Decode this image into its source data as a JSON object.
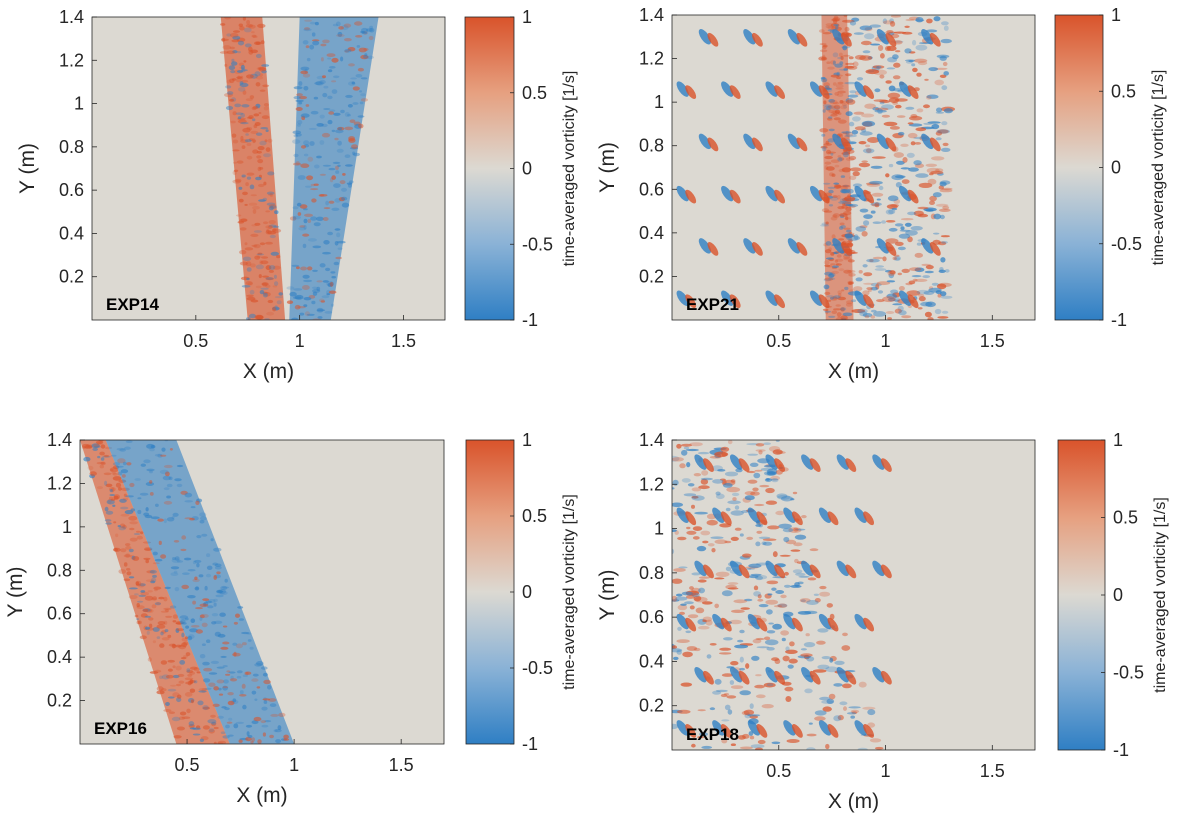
{
  "colors": {
    "positive": "#d9532b",
    "negative": "#2f7fc4",
    "neutral": "#dcd9d2",
    "background": "#ffffff",
    "axis": "#262626"
  },
  "icons": [
    "vorticity-field-image"
  ],
  "chart_data": [
    {
      "type": "heatmap",
      "panel": "EXP14",
      "annotation": "EXP14",
      "xlabel": "X (m)",
      "ylabel": "Y (m)",
      "xlim": [
        0,
        1.7
      ],
      "ylim": [
        0,
        1.4
      ],
      "x_ticks": [
        0.5,
        1,
        1.5
      ],
      "x_tick_labels": [
        "0.5",
        "1",
        "1.5"
      ],
      "y_ticks": [
        0.2,
        0.4,
        0.6,
        0.8,
        1,
        1.2,
        1.4
      ],
      "y_tick_labels": [
        "0.2",
        "0.4",
        "0.6",
        "0.8",
        "1",
        "1.2",
        "1.4"
      ],
      "colorbar": {
        "label": "time-averaged vorticity  [1/s]",
        "range": [
          -1,
          1
        ],
        "ticks": [
          1,
          0.5,
          0,
          -0.5,
          -1
        ],
        "tick_labels": [
          "1",
          "0.5",
          "0",
          "-0.5",
          "-1"
        ]
      },
      "grid": false,
      "bands": [
        {
          "sign": "positive",
          "y_bottom_x": [
            0.75,
            0.93
          ],
          "y_top_x": [
            0.62,
            0.82
          ],
          "intensity": 0.75
        },
        {
          "sign": "negative",
          "y_bottom_x": [
            0.95,
            1.15
          ],
          "y_top_x": [
            1.0,
            1.38
          ],
          "intensity": 0.7
        }
      ]
    },
    {
      "type": "heatmap",
      "panel": "EXP21",
      "annotation": "EXP21",
      "xlabel": "X (m)",
      "ylabel": "Y (m)",
      "xlim": [
        0,
        1.7
      ],
      "ylim": [
        0,
        1.4
      ],
      "x_ticks": [
        0.5,
        1,
        1.5
      ],
      "x_tick_labels": [
        "0.5",
        "1",
        "1.5"
      ],
      "y_ticks": [
        0.2,
        0.4,
        0.6,
        0.8,
        1,
        1.2,
        1.4
      ],
      "y_tick_labels": [
        "0.2",
        "0.4",
        "0.6",
        "0.8",
        "1",
        "1.2",
        "1.4"
      ],
      "colorbar": {
        "label": "time-averaged vorticity  [1/s]",
        "range": [
          -1,
          1
        ],
        "ticks": [
          1,
          0.5,
          0,
          -0.5,
          -1
        ],
        "tick_labels": [
          "1",
          "0.5",
          "0",
          "-0.5",
          "-1"
        ]
      },
      "grid": false,
      "bands": [
        {
          "sign": "positive",
          "y_bottom_x": [
            0.72,
            0.85
          ],
          "y_top_x": [
            0.7,
            0.82
          ],
          "intensity": 0.6
        },
        {
          "sign": "mixed",
          "y_bottom_x": [
            0.8,
            1.3
          ],
          "y_top_x": [
            0.8,
            1.3
          ],
          "intensity": 0.8
        }
      ],
      "vortex_pairs": {
        "x_range": [
          0.05,
          1.3
        ],
        "y_range": [
          0.1,
          1.3
        ],
        "density": "regular-array"
      }
    },
    {
      "type": "heatmap",
      "panel": "EXP16",
      "annotation": "EXP16",
      "xlabel": "X (m)",
      "ylabel": "Y (m)",
      "xlim": [
        0,
        1.7
      ],
      "ylim": [
        0,
        1.4
      ],
      "x_ticks": [
        0.5,
        1,
        1.5
      ],
      "x_tick_labels": [
        "0.5",
        "1",
        "1.5"
      ],
      "y_ticks": [
        0.2,
        0.4,
        0.6,
        0.8,
        1,
        1.2,
        1.4
      ],
      "y_tick_labels": [
        "0.2",
        "0.4",
        "0.6",
        "0.8",
        "1",
        "1.2",
        "1.4"
      ],
      "colorbar": {
        "label": "time-averaged vorticity  [1/s]",
        "range": [
          -1,
          1
        ],
        "ticks": [
          1,
          0.5,
          0,
          -0.5,
          -1
        ],
        "tick_labels": [
          "1",
          "0.5",
          "0",
          "-0.5",
          "-1"
        ]
      },
      "grid": false,
      "bands": [
        {
          "sign": "positive",
          "y_bottom_x": [
            0.45,
            0.7
          ],
          "y_top_x": [
            0.0,
            0.12
          ],
          "intensity": 0.7
        },
        {
          "sign": "negative",
          "y_bottom_x": [
            0.7,
            1.0
          ],
          "y_top_x": [
            0.12,
            0.45
          ],
          "intensity": 0.7
        }
      ]
    },
    {
      "type": "heatmap",
      "panel": "EXP18",
      "annotation": "EXP18",
      "xlabel": "X (m)",
      "ylabel": "Y (m)",
      "xlim": [
        0,
        1.7
      ],
      "ylim": [
        0,
        1.4
      ],
      "x_ticks": [
        0.5,
        1,
        1.5
      ],
      "x_tick_labels": [
        "0.5",
        "1",
        "1.5"
      ],
      "y_ticks": [
        0.2,
        0.4,
        0.6,
        0.8,
        1,
        1.2,
        1.4
      ],
      "y_tick_labels": [
        "0.2",
        "0.4",
        "0.6",
        "0.8",
        "1",
        "1.2",
        "1.4"
      ],
      "colorbar": {
        "label": "time-averaged vorticity  [1/s]",
        "range": [
          -1,
          1
        ],
        "ticks": [
          1,
          0.5,
          0,
          -0.5,
          -1
        ],
        "tick_labels": [
          "1",
          "0.5",
          "0",
          "-0.5",
          "-1"
        ]
      },
      "grid": false,
      "bands": [
        {
          "sign": "mixed",
          "y_bottom_x": [
            0.0,
            1.0
          ],
          "y_top_x": [
            0.0,
            0.5
          ],
          "intensity": 0.8
        }
      ],
      "vortex_pairs": {
        "x_range": [
          0.05,
          1.05
        ],
        "y_range": [
          0.1,
          1.3
        ],
        "density": "regular-array"
      }
    }
  ]
}
